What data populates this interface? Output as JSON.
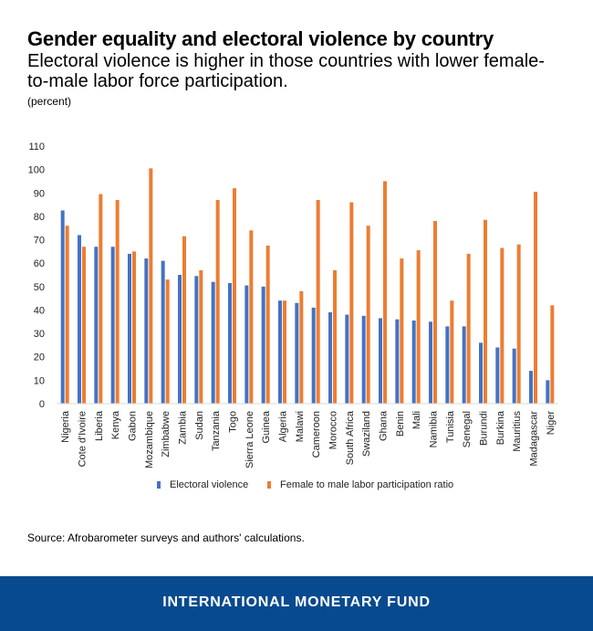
{
  "header": {
    "title": "Gender equality and electoral violence by country",
    "subtitle": "Electoral violence is higher in those countries with lower female-to-male labor force participation.",
    "unit": "(percent)"
  },
  "source": "Source:  Afrobarometer surveys and authors' calculations.",
  "footer": {
    "brand": "INTERNATIONAL MONETARY FUND",
    "color": "#084a8f"
  },
  "chart_data": {
    "type": "bar",
    "categories": [
      "Nigeria",
      "Cote d'Ivoire",
      "Liberia",
      "Kenya",
      "Gabon",
      "Mozambique",
      "Zimbabwe",
      "Zambia",
      "Sudan",
      "Tanzania",
      "Togo",
      "Sierra Leone",
      "Guinea",
      "Algeria",
      "Malawi",
      "Cameroon",
      "Morocco",
      "South Africa",
      "Swaziland",
      "Ghana",
      "Benin",
      "Mali",
      "Namibia",
      "Tunisia",
      "Senegal",
      "Burundi",
      "Burkina",
      "Mauritius",
      "Madagascar",
      "Niger"
    ],
    "series": [
      {
        "name": "Electoral violence",
        "color": "#4472c4",
        "values": [
          82.5,
          72,
          67,
          67,
          64,
          62,
          61,
          55,
          54.5,
          52,
          51.5,
          50.5,
          50,
          44,
          43,
          41,
          39,
          38,
          37.5,
          36.5,
          36,
          35.5,
          35,
          33,
          33,
          26,
          24,
          23.5,
          14,
          10
        ]
      },
      {
        "name": "Female to male labor participation ratio",
        "color": "#ed7d31",
        "values": [
          76,
          67,
          89.5,
          87,
          65,
          100.5,
          53,
          71.5,
          57,
          87,
          92,
          74,
          67.5,
          44,
          48,
          87,
          57,
          86,
          76,
          95,
          62,
          65.5,
          78,
          44,
          64,
          78.5,
          66.5,
          68,
          90.5,
          42
        ]
      }
    ],
    "yticks": [
      0,
      10,
      20,
      30,
      40,
      50,
      60,
      70,
      80,
      90,
      100,
      110
    ],
    "ylim": [
      0,
      110
    ],
    "grid": false,
    "legend_position": "bottom"
  }
}
